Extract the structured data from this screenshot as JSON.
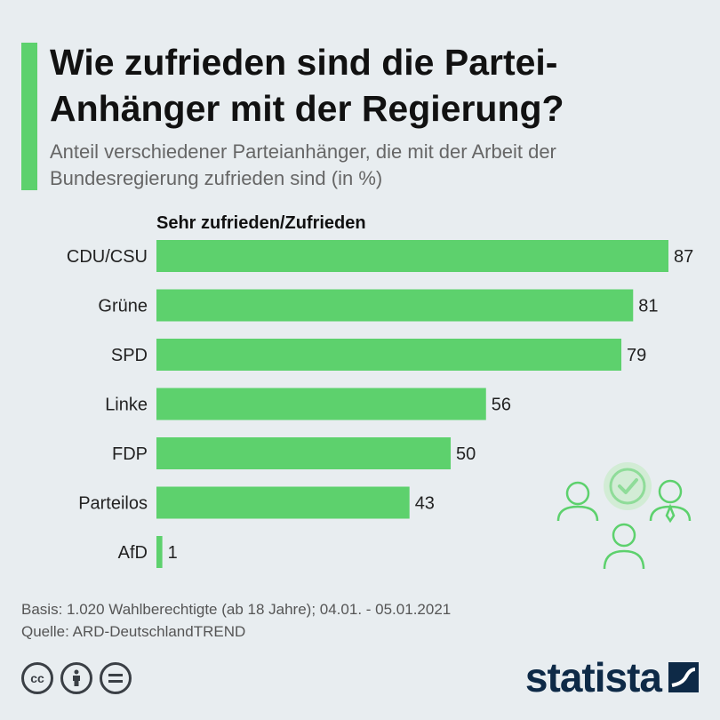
{
  "header": {
    "title": "Wie zufrieden sind die Partei-Anhänger mit der Regierung?",
    "subtitle": "Anteil verschiedener Parteianhänger, die mit der Arbeit der Bundesregierung zufrieden sind (in %)"
  },
  "chart_data": {
    "type": "bar",
    "orientation": "horizontal",
    "series_label": "Sehr zufrieden/Zufrieden",
    "categories": [
      "CDU/CSU",
      "Grüne",
      "SPD",
      "Linke",
      "FDP",
      "Parteilos",
      "AfD"
    ],
    "values": [
      87,
      81,
      79,
      56,
      50,
      43,
      1
    ],
    "xlim": [
      0,
      87
    ],
    "bar_color": "#5dd16d",
    "grid": false
  },
  "footer": {
    "basis": "Basis: 1.020 Wahlberechtigte (ab 18 Jahre); 04.01. - 05.01.2021",
    "source": "Quelle: ARD-DeutschlandTREND",
    "brand": "statista",
    "license_icons": [
      "cc-icon",
      "attribution-icon",
      "no-derivatives-icon"
    ]
  },
  "colors": {
    "accent": "#5dd16d",
    "background": "#e8edf0",
    "brand": "#0e2a47"
  }
}
